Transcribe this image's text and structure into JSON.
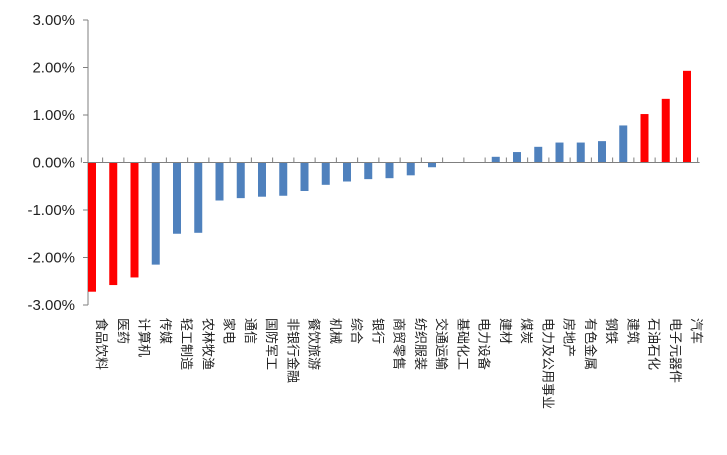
{
  "chart_data": {
    "type": "bar",
    "title": "",
    "xlabel": "",
    "ylabel": "",
    "ylim": [
      -3.0,
      3.0
    ],
    "yticks": [
      3.0,
      2.0,
      1.0,
      0.0,
      -1.0,
      -2.0,
      -3.0
    ],
    "ytick_labels": [
      "3.00%",
      "2.00%",
      "1.00%",
      "0.00%",
      "-1.00%",
      "-2.00%",
      "-3.00%"
    ],
    "grid": false,
    "legend": "none",
    "colors": {
      "highlight": "#ff0000",
      "normal": "#4f81bd",
      "axis": "#7f7f7f"
    },
    "categories": [
      "食品饮料",
      "医药",
      "计算机",
      "传媒",
      "轻工制造",
      "农林牧渔",
      "家电",
      "通信",
      "国防军工",
      "非银行金融",
      "餐饮旅游",
      "机械",
      "综合",
      "银行",
      "商贸零售",
      "纺织服装",
      "交通运输",
      "基础化工",
      "电力设备",
      "建材",
      "煤炭",
      "电力及公用事业",
      "房地产",
      "有色金属",
      "钢铁",
      "建筑",
      "石油石化",
      "电子元器件",
      "汽车"
    ],
    "values": [
      -2.72,
      -2.58,
      -2.42,
      -2.15,
      -1.5,
      -1.48,
      -0.8,
      -0.75,
      -0.72,
      -0.7,
      -0.6,
      -0.47,
      -0.4,
      -0.35,
      -0.33,
      -0.27,
      -0.1,
      0.0,
      0.0,
      0.12,
      0.22,
      0.33,
      0.42,
      0.42,
      0.45,
      0.78,
      1.02,
      1.34,
      1.93
    ],
    "highlight": [
      true,
      true,
      true,
      false,
      false,
      false,
      false,
      false,
      false,
      false,
      false,
      false,
      false,
      false,
      false,
      false,
      false,
      false,
      false,
      false,
      false,
      false,
      false,
      false,
      false,
      false,
      true,
      true,
      true
    ]
  }
}
